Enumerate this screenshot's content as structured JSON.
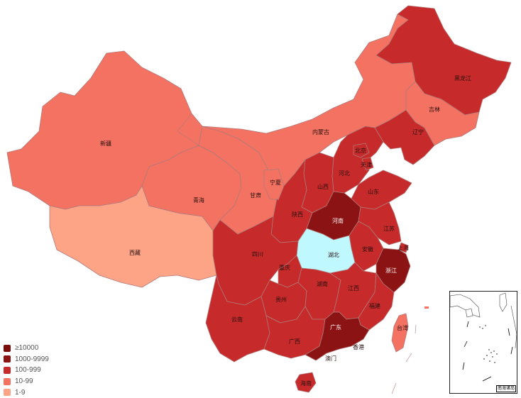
{
  "colors": {
    "ge10000": "#7a0c0c",
    "c1000": "#8b1313",
    "c100": "#c72a2a",
    "c10": "#f47262",
    "c1": "#fda486",
    "hubei": "#c0f8ff",
    "border": "#b07a7a"
  },
  "legend": [
    {
      "label": "≥10000",
      "color": "#7a0c0c"
    },
    {
      "label": "1000-9999",
      "color": "#8b1313"
    },
    {
      "label": "100-999",
      "color": "#c72a2a"
    },
    {
      "label": "10-99",
      "color": "#f47262"
    },
    {
      "label": "1-9",
      "color": "#fda486"
    }
  ],
  "provinces": {
    "heilongjiang": "黑龙江",
    "jilin": "吉林",
    "liaoning": "辽宁",
    "neimenggu": "内蒙古",
    "xinjiang": "新疆",
    "xizang": "西藏",
    "qinghai": "青海",
    "gansu": "甘肃",
    "ningxia": "宁夏",
    "shaanxi": "陕西",
    "shanxi": "山西",
    "hebei": "河北",
    "beijing": "北京",
    "tianjin": "天津",
    "shandong": "山东",
    "henan": "河南",
    "jiangsu": "江苏",
    "anhui": "安徽",
    "shanghai": "上海",
    "zhejiang": "浙江",
    "hubei": "湖北",
    "sichuan": "四川",
    "chongqing": "重庆",
    "hunan": "湖南",
    "jiangxi": "江西",
    "fujian": "福建",
    "guizhou": "贵州",
    "yunnan": "云南",
    "guangxi": "广西",
    "guangdong": "广东",
    "hongkong": "香港",
    "macau": "澳门",
    "hainan": "海南",
    "taiwan": "台湾"
  },
  "inset": {
    "label": "南海诸岛"
  }
}
